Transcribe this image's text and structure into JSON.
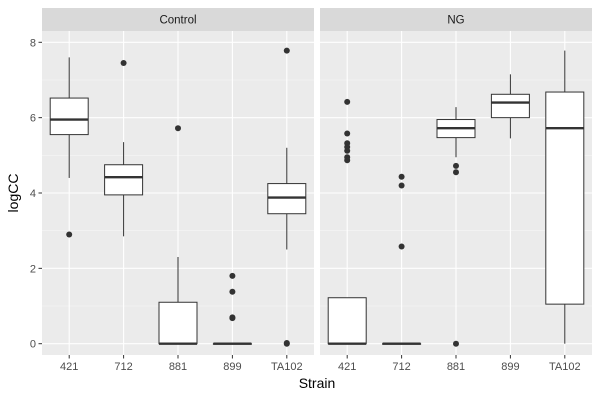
{
  "chart_data": {
    "type": "boxplot",
    "xlabel": "Strain",
    "ylabel": "logCC",
    "categories": [
      "421",
      "712",
      "881",
      "899",
      "TA102"
    ],
    "ylim": [
      -0.3,
      8.3
    ],
    "yticks": [
      0,
      2,
      4,
      6,
      8
    ],
    "grid": true,
    "legend": "none",
    "colors": {
      "panel_bg": "#ebebeb",
      "grid_major": "#ffffff",
      "strip_bg": "#d9d9d9",
      "box_fill": "#ffffff",
      "box_line": "#333333",
      "outlier": "#333333"
    },
    "panels": [
      {
        "title": "Control",
        "boxes": [
          {
            "category": "421",
            "min": 4.4,
            "q1": 5.55,
            "median": 5.95,
            "q3": 6.52,
            "max": 7.6,
            "outliers": [
              2.9
            ]
          },
          {
            "category": "712",
            "min": 2.85,
            "q1": 3.95,
            "median": 4.42,
            "q3": 4.75,
            "max": 5.35,
            "outliers": [
              7.45
            ]
          },
          {
            "category": "881",
            "min": 0.0,
            "q1": 0.0,
            "median": 0.0,
            "q3": 1.1,
            "max": 2.3,
            "outliers": [
              5.72
            ]
          },
          {
            "category": "899",
            "min": 0.0,
            "q1": 0.0,
            "median": 0.0,
            "q3": 0.0,
            "max": 0.0,
            "outliers": [
              1.8,
              1.38,
              0.7,
              0.68
            ]
          },
          {
            "category": "TA102",
            "min": 2.5,
            "q1": 3.45,
            "median": 3.88,
            "q3": 4.25,
            "max": 5.2,
            "outliers": [
              7.78,
              0.02,
              0.0
            ]
          }
        ]
      },
      {
        "title": "NG",
        "boxes": [
          {
            "category": "421",
            "min": 0.0,
            "q1": 0.0,
            "median": 0.0,
            "q3": 1.22,
            "max": 1.22,
            "outliers": [
              6.42,
              5.58,
              5.32,
              5.22,
              5.12,
              4.95,
              4.87
            ]
          },
          {
            "category": "712",
            "min": 0.0,
            "q1": 0.0,
            "median": 0.0,
            "q3": 0.0,
            "max": 0.0,
            "outliers": [
              4.43,
              4.2,
              2.58
            ]
          },
          {
            "category": "881",
            "min": 4.95,
            "q1": 5.47,
            "median": 5.72,
            "q3": 5.95,
            "max": 6.28,
            "outliers": [
              4.72,
              4.55,
              0.0
            ]
          },
          {
            "category": "899",
            "min": 5.45,
            "q1": 6.0,
            "median": 6.4,
            "q3": 6.62,
            "max": 7.15,
            "outliers": []
          },
          {
            "category": "TA102",
            "min": 0.0,
            "q1": 1.05,
            "median": 5.72,
            "q3": 6.68,
            "max": 7.78,
            "outliers": []
          }
        ]
      }
    ]
  }
}
